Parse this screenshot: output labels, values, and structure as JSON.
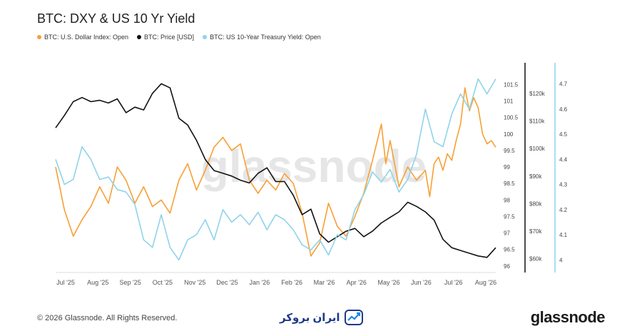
{
  "title": "BTC: DXY & US 10 Yr Yield",
  "legend": [
    {
      "label": "BTC: U.S. Dollar Index: Open",
      "color": "#f7a035"
    },
    {
      "label": "BTC: Price [USD]",
      "color": "#111111"
    },
    {
      "label": "BTC: US 10-Year Treasury Yield: Open",
      "color": "#8fd3ea"
    }
  ],
  "watermark": "glassnode",
  "footer": {
    "copyright": "© 2026 Glassnode. All Rights Reserved.",
    "brand": "ایران بروکر",
    "logo": "glassnode"
  },
  "chart_data": {
    "type": "line",
    "title": "BTC: DXY & US 10 Yr Yield",
    "x_tick_labels": [
      "Jul '25",
      "Aug '25",
      "Sep '25",
      "Oct '25",
      "Nov '25",
      "Dec '25",
      "Jan '26",
      "Feb '26",
      "Mar '26",
      "Apr '26",
      "May '26",
      "Jun '26",
      "Jul '26",
      "Aug '26"
    ],
    "x_range": [
      0,
      1
    ],
    "axes": {
      "dxy": {
        "ticks": [
          "96",
          "96.5",
          "97",
          "97.5",
          "98",
          "98.5",
          "99",
          "99.5",
          "100",
          "100.5",
          "101",
          "101.5"
        ],
        "range": [
          95.8,
          101.9
        ]
      },
      "price": {
        "ticks": [
          "$60k",
          "$70k",
          "$80k",
          "$90k",
          "$100k",
          "$110k",
          "$120k"
        ],
        "range": [
          55000,
          128000
        ]
      },
      "yield": {
        "ticks": [
          "4",
          "4.1",
          "4.2",
          "4.3",
          "4.4",
          "4.5",
          "4.6",
          "4.7"
        ],
        "range": [
          3.95,
          4.75
        ]
      }
    },
    "series": [
      {
        "name": "BTC: U.S. Dollar Index: Open",
        "axis": "dxy",
        "color": "#f7a035",
        "points": [
          [
            0.0,
            99.0
          ],
          [
            0.02,
            97.7
          ],
          [
            0.04,
            96.9
          ],
          [
            0.06,
            97.4
          ],
          [
            0.08,
            97.8
          ],
          [
            0.1,
            98.4
          ],
          [
            0.12,
            97.9
          ],
          [
            0.14,
            99.0
          ],
          [
            0.16,
            98.6
          ],
          [
            0.18,
            97.9
          ],
          [
            0.2,
            98.4
          ],
          [
            0.22,
            97.8
          ],
          [
            0.24,
            98.0
          ],
          [
            0.26,
            97.6
          ],
          [
            0.28,
            98.6
          ],
          [
            0.3,
            99.1
          ],
          [
            0.32,
            98.3
          ],
          [
            0.34,
            98.9
          ],
          [
            0.36,
            99.6
          ],
          [
            0.38,
            99.9
          ],
          [
            0.4,
            99.5
          ],
          [
            0.42,
            99.7
          ],
          [
            0.44,
            98.6
          ],
          [
            0.46,
            98.2
          ],
          [
            0.48,
            98.6
          ],
          [
            0.5,
            98.3
          ],
          [
            0.52,
            98.8
          ],
          [
            0.54,
            98.5
          ],
          [
            0.56,
            97.6
          ],
          [
            0.58,
            96.3
          ],
          [
            0.6,
            96.7
          ],
          [
            0.62,
            97.9
          ],
          [
            0.64,
            97.2
          ],
          [
            0.66,
            96.9
          ],
          [
            0.68,
            97.5
          ],
          [
            0.7,
            98.2
          ],
          [
            0.72,
            99.2
          ],
          [
            0.74,
            100.3
          ],
          [
            0.75,
            99.1
          ],
          [
            0.76,
            99.8
          ],
          [
            0.78,
            98.4
          ],
          [
            0.8,
            99.0
          ],
          [
            0.82,
            98.6
          ],
          [
            0.84,
            98.9
          ],
          [
            0.85,
            98.1
          ],
          [
            0.86,
            99.1
          ],
          [
            0.87,
            99.3
          ],
          [
            0.88,
            98.9
          ],
          [
            0.89,
            99.4
          ],
          [
            0.9,
            99.2
          ],
          [
            0.91,
            99.8
          ],
          [
            0.92,
            100.3
          ],
          [
            0.93,
            101.4
          ],
          [
            0.94,
            100.7
          ],
          [
            0.95,
            101.1
          ],
          [
            0.96,
            100.8
          ],
          [
            0.97,
            100.0
          ],
          [
            0.98,
            99.7
          ],
          [
            0.99,
            99.8
          ],
          [
            1.0,
            99.6
          ]
        ]
      },
      {
        "name": "BTC: Price [USD]",
        "axis": "price",
        "color": "#111111",
        "points": [
          [
            0.0,
            107500
          ],
          [
            0.02,
            112000
          ],
          [
            0.04,
            117000
          ],
          [
            0.06,
            118500
          ],
          [
            0.08,
            117000
          ],
          [
            0.1,
            117500
          ],
          [
            0.12,
            116500
          ],
          [
            0.14,
            118000
          ],
          [
            0.16,
            113000
          ],
          [
            0.18,
            115000
          ],
          [
            0.2,
            114000
          ],
          [
            0.22,
            120000
          ],
          [
            0.24,
            123500
          ],
          [
            0.26,
            122000
          ],
          [
            0.28,
            111000
          ],
          [
            0.3,
            108500
          ],
          [
            0.32,
            103000
          ],
          [
            0.34,
            96000
          ],
          [
            0.36,
            92000
          ],
          [
            0.38,
            91000
          ],
          [
            0.4,
            90000
          ],
          [
            0.42,
            88500
          ],
          [
            0.44,
            87500
          ],
          [
            0.46,
            91000
          ],
          [
            0.48,
            93000
          ],
          [
            0.5,
            88000
          ],
          [
            0.52,
            88000
          ],
          [
            0.54,
            83000
          ],
          [
            0.56,
            76000
          ],
          [
            0.58,
            78000
          ],
          [
            0.6,
            69000
          ],
          [
            0.62,
            66000
          ],
          [
            0.64,
            68000
          ],
          [
            0.66,
            70000
          ],
          [
            0.68,
            71000
          ],
          [
            0.7,
            68000
          ],
          [
            0.72,
            70000
          ],
          [
            0.74,
            73000
          ],
          [
            0.76,
            75000
          ],
          [
            0.78,
            77000
          ],
          [
            0.8,
            80500
          ],
          [
            0.82,
            79000
          ],
          [
            0.84,
            77000
          ],
          [
            0.86,
            74000
          ],
          [
            0.88,
            67000
          ],
          [
            0.9,
            64000
          ],
          [
            0.92,
            63000
          ],
          [
            0.94,
            62000
          ],
          [
            0.96,
            61000
          ],
          [
            0.98,
            60500
          ],
          [
            1.0,
            64000
          ]
        ]
      },
      {
        "name": "BTC: US 10-Year Treasury Yield: Open",
        "axis": "yield",
        "color": "#8fd3ea",
        "points": [
          [
            0.0,
            4.4
          ],
          [
            0.02,
            4.3
          ],
          [
            0.04,
            4.32
          ],
          [
            0.06,
            4.45
          ],
          [
            0.08,
            4.4
          ],
          [
            0.1,
            4.32
          ],
          [
            0.12,
            4.33
          ],
          [
            0.14,
            4.28
          ],
          [
            0.16,
            4.27
          ],
          [
            0.18,
            4.22
          ],
          [
            0.2,
            4.08
          ],
          [
            0.22,
            4.05
          ],
          [
            0.24,
            4.18
          ],
          [
            0.26,
            4.05
          ],
          [
            0.28,
            4.0
          ],
          [
            0.3,
            4.08
          ],
          [
            0.32,
            4.1
          ],
          [
            0.34,
            4.16
          ],
          [
            0.36,
            4.08
          ],
          [
            0.38,
            4.2
          ],
          [
            0.4,
            4.15
          ],
          [
            0.42,
            4.18
          ],
          [
            0.44,
            4.14
          ],
          [
            0.46,
            4.19
          ],
          [
            0.48,
            4.12
          ],
          [
            0.5,
            4.18
          ],
          [
            0.52,
            4.16
          ],
          [
            0.54,
            4.12
          ],
          [
            0.56,
            4.06
          ],
          [
            0.58,
            4.04
          ],
          [
            0.6,
            4.08
          ],
          [
            0.62,
            4.02
          ],
          [
            0.64,
            4.1
          ],
          [
            0.66,
            4.08
          ],
          [
            0.68,
            4.2
          ],
          [
            0.7,
            4.26
          ],
          [
            0.72,
            4.35
          ],
          [
            0.74,
            4.31
          ],
          [
            0.76,
            4.36
          ],
          [
            0.78,
            4.27
          ],
          [
            0.8,
            4.32
          ],
          [
            0.82,
            4.42
          ],
          [
            0.84,
            4.6
          ],
          [
            0.86,
            4.47
          ],
          [
            0.88,
            4.45
          ],
          [
            0.9,
            4.58
          ],
          [
            0.92,
            4.66
          ],
          [
            0.94,
            4.6
          ],
          [
            0.96,
            4.72
          ],
          [
            0.98,
            4.66
          ],
          [
            1.0,
            4.72
          ]
        ]
      }
    ]
  }
}
